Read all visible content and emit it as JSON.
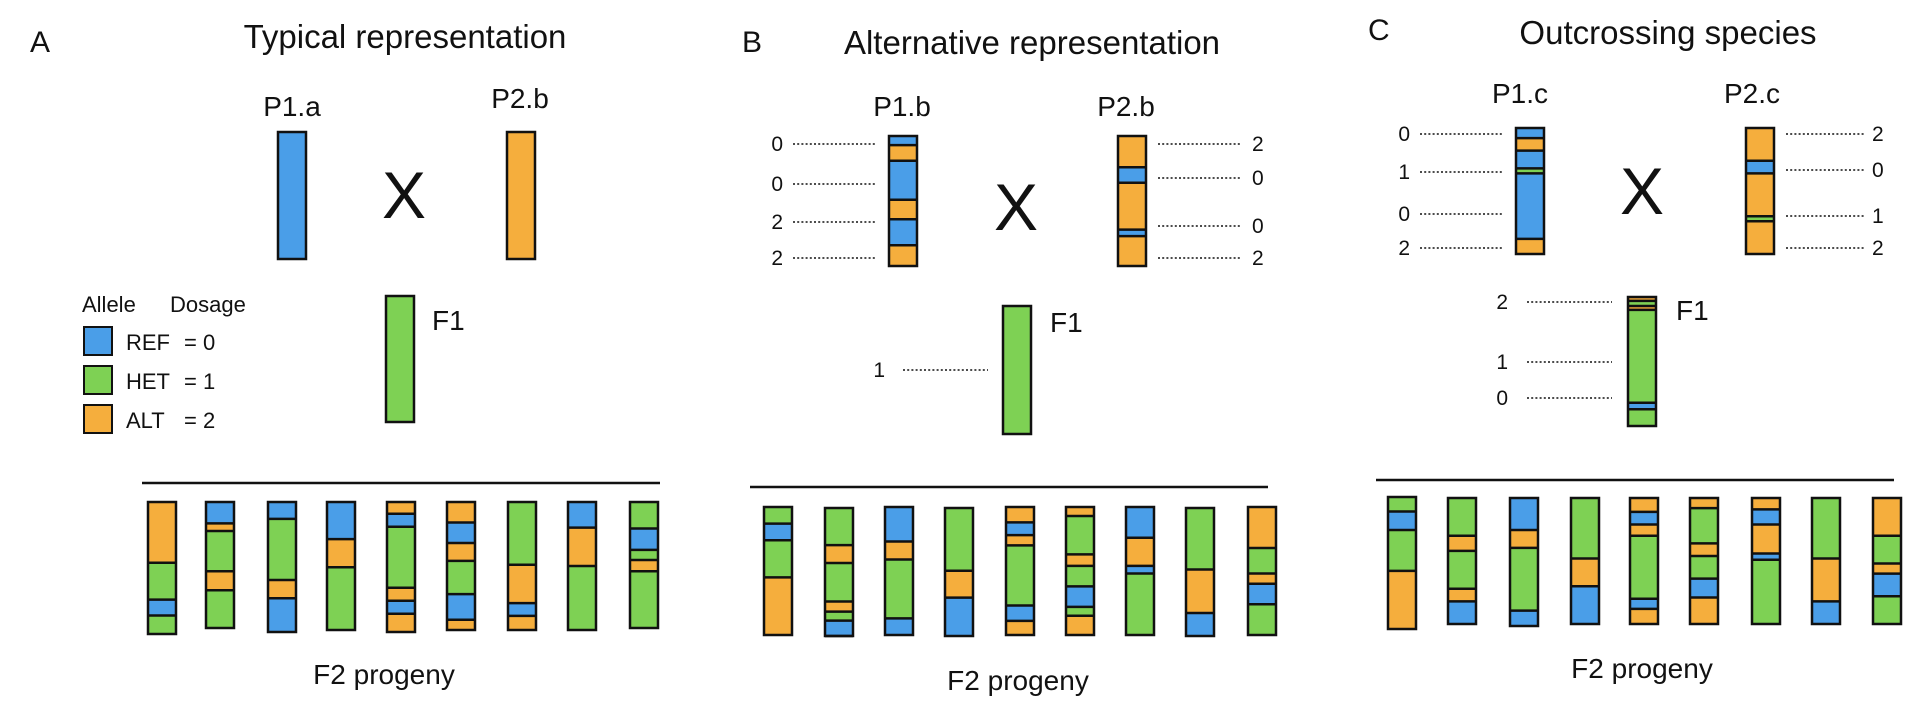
{
  "colors": {
    "ref": "#4a9ee8",
    "het": "#7ed154",
    "alt": "#f5ae3d",
    "line": "#111111"
  },
  "legend": {
    "allele_header": "Allele",
    "dosage_header": "Dosage",
    "items": [
      {
        "allele": "REF",
        "dosage": "= 0",
        "type": "ref"
      },
      {
        "allele": "HET",
        "dosage": "= 1",
        "type": "het"
      },
      {
        "allele": "ALT",
        "dosage": "= 2",
        "type": "alt"
      }
    ]
  },
  "cross_symbol": "X",
  "panels": [
    {
      "letter": "A",
      "title": "Typical representation",
      "parents": [
        {
          "label": "P1.a",
          "segments": [
            [
              "ref",
              1
            ]
          ]
        },
        {
          "label": "P2.b",
          "segments": [
            [
              "alt",
              1
            ]
          ]
        }
      ],
      "f1": {
        "label": "F1",
        "segments": [
          [
            "het",
            1
          ]
        ]
      },
      "progeny_label": "F2 progeny",
      "progeny": [
        [
          [
            "alt",
            0.46
          ],
          [
            "het",
            0.28
          ],
          [
            "ref",
            0.12
          ],
          [
            "het",
            0.14
          ]
        ],
        [
          [
            "ref",
            0.17
          ],
          [
            "alt",
            0.06
          ],
          [
            "het",
            0.32
          ],
          [
            "alt",
            0.15
          ],
          [
            "het",
            0.3
          ]
        ],
        [
          [
            "ref",
            0.13
          ],
          [
            "het",
            0.47
          ],
          [
            "alt",
            0.14
          ],
          [
            "ref",
            0.26
          ]
        ],
        [
          [
            "ref",
            0.29
          ],
          [
            "alt",
            0.22
          ],
          [
            "het",
            0.49
          ]
        ],
        [
          [
            "alt",
            0.09
          ],
          [
            "ref",
            0.1
          ],
          [
            "het",
            0.47
          ],
          [
            "alt",
            0.1
          ],
          [
            "ref",
            0.1
          ],
          [
            "alt",
            0.14
          ]
        ],
        [
          [
            "alt",
            0.16
          ],
          [
            "ref",
            0.16
          ],
          [
            "alt",
            0.14
          ],
          [
            "het",
            0.26
          ],
          [
            "ref",
            0.2
          ],
          [
            "alt",
            0.08
          ]
        ],
        [
          [
            "het",
            0.49
          ],
          [
            "alt",
            0.3
          ],
          [
            "ref",
            0.1
          ],
          [
            "alt",
            0.11
          ]
        ],
        [
          [
            "ref",
            0.2
          ],
          [
            "alt",
            0.3
          ],
          [
            "het",
            0.5
          ]
        ],
        [
          [
            "het",
            0.21
          ],
          [
            "ref",
            0.17
          ],
          [
            "het",
            0.08
          ],
          [
            "alt",
            0.09
          ],
          [
            "het",
            0.45
          ]
        ]
      ]
    },
    {
      "letter": "B",
      "title": "Alternative  representation",
      "parents": [
        {
          "label": "P1.b",
          "segments": [
            [
              "ref",
              0.07
            ],
            [
              "alt",
              0.12
            ],
            [
              "ref",
              0.3
            ],
            [
              "alt",
              0.15
            ],
            [
              "ref",
              0.2
            ],
            [
              "alt",
              0.16
            ]
          ],
          "dosages": [
            "0",
            "0",
            "2",
            "2"
          ]
        },
        {
          "label": "P2.b",
          "segments": [
            [
              "alt",
              0.24
            ],
            [
              "ref",
              0.12
            ],
            [
              "alt",
              0.36
            ],
            [
              "ref",
              0.05
            ],
            [
              "alt",
              0.23
            ]
          ],
          "dosages": [
            "2",
            "0",
            "0",
            "2"
          ]
        }
      ],
      "f1": {
        "label": "F1",
        "segments": [
          [
            "het",
            1
          ]
        ],
        "dosages": [
          "1"
        ]
      },
      "progeny_label": "F2 progeny",
      "progeny": [
        [
          [
            "het",
            0.13
          ],
          [
            "ref",
            0.13
          ],
          [
            "het",
            0.29
          ],
          [
            "alt",
            0.45
          ]
        ],
        [
          [
            "het",
            0.29
          ],
          [
            "alt",
            0.14
          ],
          [
            "het",
            0.3
          ],
          [
            "alt",
            0.08
          ],
          [
            "het",
            0.07
          ],
          [
            "ref",
            0.12
          ],
          [
            "het",
            0.0
          ],
          [
            "ref",
            0.0
          ]
        ],
        [
          [
            "ref",
            0.27
          ],
          [
            "alt",
            0.14
          ],
          [
            "het",
            0.46
          ],
          [
            "ref",
            0.13
          ]
        ],
        [
          [
            "het",
            0.49
          ],
          [
            "alt",
            0.21
          ],
          [
            "ref",
            0.3
          ]
        ],
        [
          [
            "alt",
            0.12
          ],
          [
            "ref",
            0.1
          ],
          [
            "alt",
            0.08
          ],
          [
            "het",
            0.47
          ],
          [
            "ref",
            0.12
          ],
          [
            "alt",
            0.11
          ]
        ],
        [
          [
            "alt",
            0.07
          ],
          [
            "het",
            0.3
          ],
          [
            "alt",
            0.09
          ],
          [
            "het",
            0.16
          ],
          [
            "ref",
            0.16
          ],
          [
            "het",
            0.07
          ],
          [
            "alt",
            0.15
          ]
        ],
        [
          [
            "ref",
            0.24
          ],
          [
            "alt",
            0.22
          ],
          [
            "ref",
            0.06
          ],
          [
            "het",
            0.48
          ]
        ],
        [
          [
            "het",
            0.48
          ],
          [
            "alt",
            0.34
          ],
          [
            "ref",
            0.18
          ]
        ],
        [
          [
            "alt",
            0.32
          ],
          [
            "het",
            0.2
          ],
          [
            "alt",
            0.08
          ],
          [
            "ref",
            0.16
          ],
          [
            "het",
            0.24
          ]
        ]
      ]
    },
    {
      "letter": "C",
      "title": "Outcrossing species",
      "parents": [
        {
          "label": "P1.c",
          "segments": [
            [
              "ref",
              0.08
            ],
            [
              "alt",
              0.1
            ],
            [
              "ref",
              0.14
            ],
            [
              "het",
              0.04
            ],
            [
              "ref",
              0.52
            ],
            [
              "alt",
              0.12
            ]
          ],
          "dosages": [
            "0",
            "1",
            "0",
            "2"
          ]
        },
        {
          "label": "P2.c",
          "segments": [
            [
              "alt",
              0.26
            ],
            [
              "ref",
              0.1
            ],
            [
              "alt",
              0.34
            ],
            [
              "het",
              0.04
            ],
            [
              "alt",
              0.26
            ]
          ],
          "dosages": [
            "2",
            "0",
            "1",
            "2"
          ]
        }
      ],
      "f1": {
        "label": "F1",
        "segments": [
          [
            "alt",
            0.03
          ],
          [
            "het",
            0.04
          ],
          [
            "alt",
            0.03
          ],
          [
            "het",
            0.72
          ],
          [
            "ref",
            0.05
          ],
          [
            "het",
            0.13
          ]
        ],
        "dosages": [
          "2",
          "1",
          "0"
        ]
      },
      "progeny_label": "F2 progeny",
      "progeny": [
        [
          [
            "het",
            0.11
          ],
          [
            "ref",
            0.14
          ],
          [
            "het",
            0.31
          ],
          [
            "alt",
            0.44
          ]
        ],
        [
          [
            "het",
            0.3
          ],
          [
            "alt",
            0.12
          ],
          [
            "het",
            0.3
          ],
          [
            "alt",
            0.1
          ],
          [
            "ref",
            0.18
          ]
        ],
        [
          [
            "ref",
            0.25
          ],
          [
            "alt",
            0.14
          ],
          [
            "het",
            0.49
          ],
          [
            "ref",
            0.12
          ]
        ],
        [
          [
            "het",
            0.48
          ],
          [
            "alt",
            0.22
          ],
          [
            "ref",
            0.3
          ]
        ],
        [
          [
            "alt",
            0.11
          ],
          [
            "ref",
            0.1
          ],
          [
            "alt",
            0.09
          ],
          [
            "het",
            0.5
          ],
          [
            "ref",
            0.08
          ],
          [
            "alt",
            0.12
          ]
        ],
        [
          [
            "alt",
            0.08
          ],
          [
            "het",
            0.28
          ],
          [
            "alt",
            0.1
          ],
          [
            "het",
            0.18
          ],
          [
            "ref",
            0.15
          ],
          [
            "alt",
            0.21
          ]
        ],
        [
          [
            "alt",
            0.09
          ],
          [
            "ref",
            0.12
          ],
          [
            "alt",
            0.23
          ],
          [
            "ref",
            0.05
          ],
          [
            "het",
            0.51
          ]
        ],
        [
          [
            "het",
            0.48
          ],
          [
            "alt",
            0.34
          ],
          [
            "ref",
            0.18
          ]
        ],
        [
          [
            "alt",
            0.3
          ],
          [
            "het",
            0.22
          ],
          [
            "alt",
            0.08
          ],
          [
            "ref",
            0.18
          ],
          [
            "het",
            0.22
          ]
        ]
      ]
    }
  ]
}
